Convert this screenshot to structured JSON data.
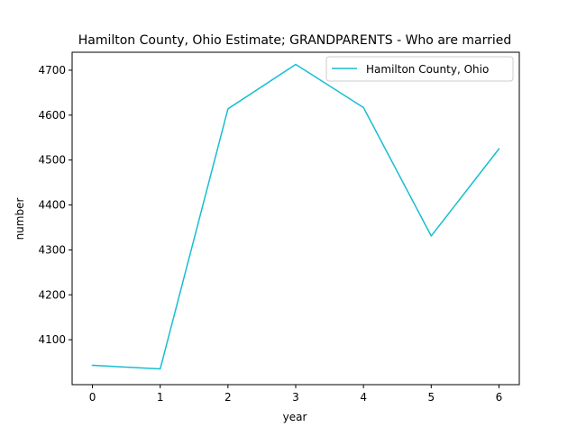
{
  "chart_data": {
    "type": "line",
    "title": "Hamilton County, Ohio Estimate; GRANDPARENTS - Who are married",
    "xlabel": "year",
    "ylabel": "number",
    "x": [
      0,
      1,
      2,
      3,
      4,
      5,
      6
    ],
    "series": [
      {
        "name": "Hamilton County, Ohio",
        "color": "#17becf",
        "values": [
          4043,
          4035,
          4614,
          4713,
          4617,
          4331,
          4525
        ]
      }
    ],
    "xticks": [
      "0",
      "1",
      "2",
      "3",
      "4",
      "5",
      "6"
    ],
    "yticks": [
      "4100",
      "4200",
      "4300",
      "4400",
      "4500",
      "4600",
      "4700"
    ],
    "xlim": [
      -0.3,
      6.3
    ],
    "ylim": [
      4000,
      4740
    ],
    "grid": false,
    "legend_position": "top-right"
  }
}
